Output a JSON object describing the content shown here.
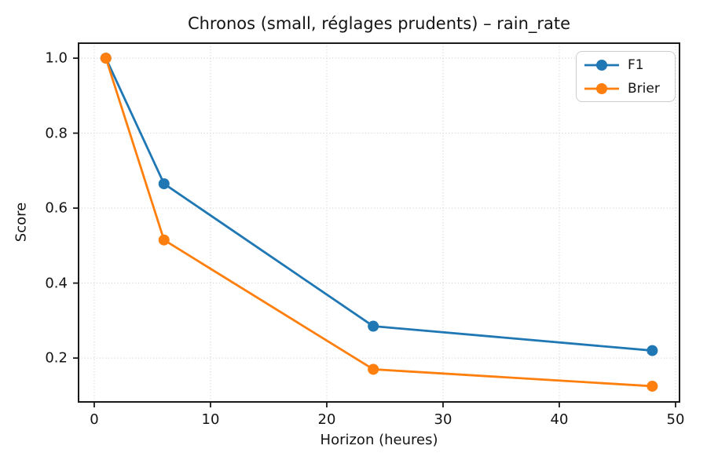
{
  "chart_data": {
    "type": "line",
    "title": "Chronos (small, réglages prudents) – rain_rate",
    "xlabel": "Horizon (heures)",
    "ylabel": "Score",
    "x": [
      1,
      6,
      24,
      48
    ],
    "series": [
      {
        "name": "F1",
        "color": "#1f77b4",
        "values": [
          1.0,
          0.665,
          0.285,
          0.22
        ]
      },
      {
        "name": "Brier",
        "color": "#ff7f0e",
        "values": [
          1.0,
          0.515,
          0.17,
          0.125
        ]
      }
    ],
    "x_ticks": {
      "values": [
        0,
        10,
        20,
        30,
        40,
        50
      ],
      "labels": [
        "0",
        "10",
        "20",
        "30",
        "40",
        "50"
      ]
    },
    "y_ticks": {
      "values": [
        0.2,
        0.4,
        0.6,
        0.8,
        1.0
      ],
      "labels": [
        "0.2",
        "0.4",
        "0.6",
        "0.8",
        "1.0"
      ]
    },
    "xlim": [
      -1.35,
      50.34
    ],
    "ylim": [
      0.083,
      1.04
    ],
    "grid": true,
    "grid_style": "dotted",
    "grid_color": "#d0d0d0",
    "spine_color": "#1a1a1a",
    "text_color": "#141414",
    "background": "#ffffff",
    "legend_position": "upper right",
    "marker": "circle"
  }
}
